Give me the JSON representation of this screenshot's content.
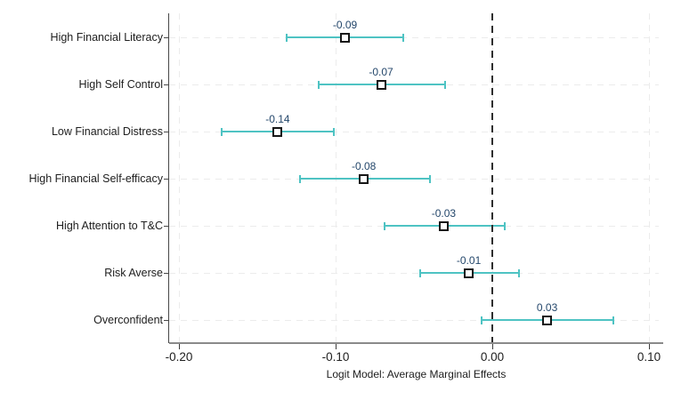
{
  "chart_data": {
    "type": "scatter",
    "subtype": "coefficient-plot-with-ci",
    "title": "",
    "xlabel": "Logit Model: Average Marginal Effects",
    "ylabel": "",
    "xlim": [
      -0.206,
      0.109
    ],
    "grid": "dashed-light",
    "zero_reference_line": 0.0,
    "x_ticks": [
      {
        "value": -0.2,
        "label": "-0.20"
      },
      {
        "value": -0.1,
        "label": "-0.10"
      },
      {
        "value": 0.0,
        "label": "0.00"
      },
      {
        "value": 0.1,
        "label": "0.10"
      }
    ],
    "points": [
      {
        "label": "High Financial Literacy",
        "value_label": "-0.09",
        "estimate": -0.094,
        "ci_low": -0.131,
        "ci_high": -0.057
      },
      {
        "label": "High Self Control",
        "value_label": "-0.07",
        "estimate": -0.071,
        "ci_low": -0.111,
        "ci_high": -0.03
      },
      {
        "label": "Low Financial Distress",
        "value_label": "-0.14",
        "estimate": -0.137,
        "ci_low": -0.173,
        "ci_high": -0.101
      },
      {
        "label": "High Financial Self-efficacy",
        "value_label": "-0.08",
        "estimate": -0.082,
        "ci_low": -0.123,
        "ci_high": -0.04
      },
      {
        "label": "High Attention to T&C",
        "value_label": "-0.03",
        "estimate": -0.031,
        "ci_low": -0.069,
        "ci_high": 0.008
      },
      {
        "label": "Risk Averse",
        "value_label": "-0.01",
        "estimate": -0.015,
        "ci_low": -0.046,
        "ci_high": 0.017
      },
      {
        "label": "Overconfident",
        "value_label": "0.03",
        "estimate": 0.035,
        "ci_low": -0.007,
        "ci_high": 0.077
      }
    ],
    "colors": {
      "ci_line": "#4ec3c3",
      "marker_fill": "#ffffff",
      "marker_border": "#161616",
      "value_label_text": "#24476b",
      "category_text": "#202020",
      "grid_line": "#ececec",
      "zero_line": "#2e2e2e",
      "y_axis": "#474747",
      "x_axis": "#8a8a8a",
      "background": "#ffffff"
    }
  }
}
